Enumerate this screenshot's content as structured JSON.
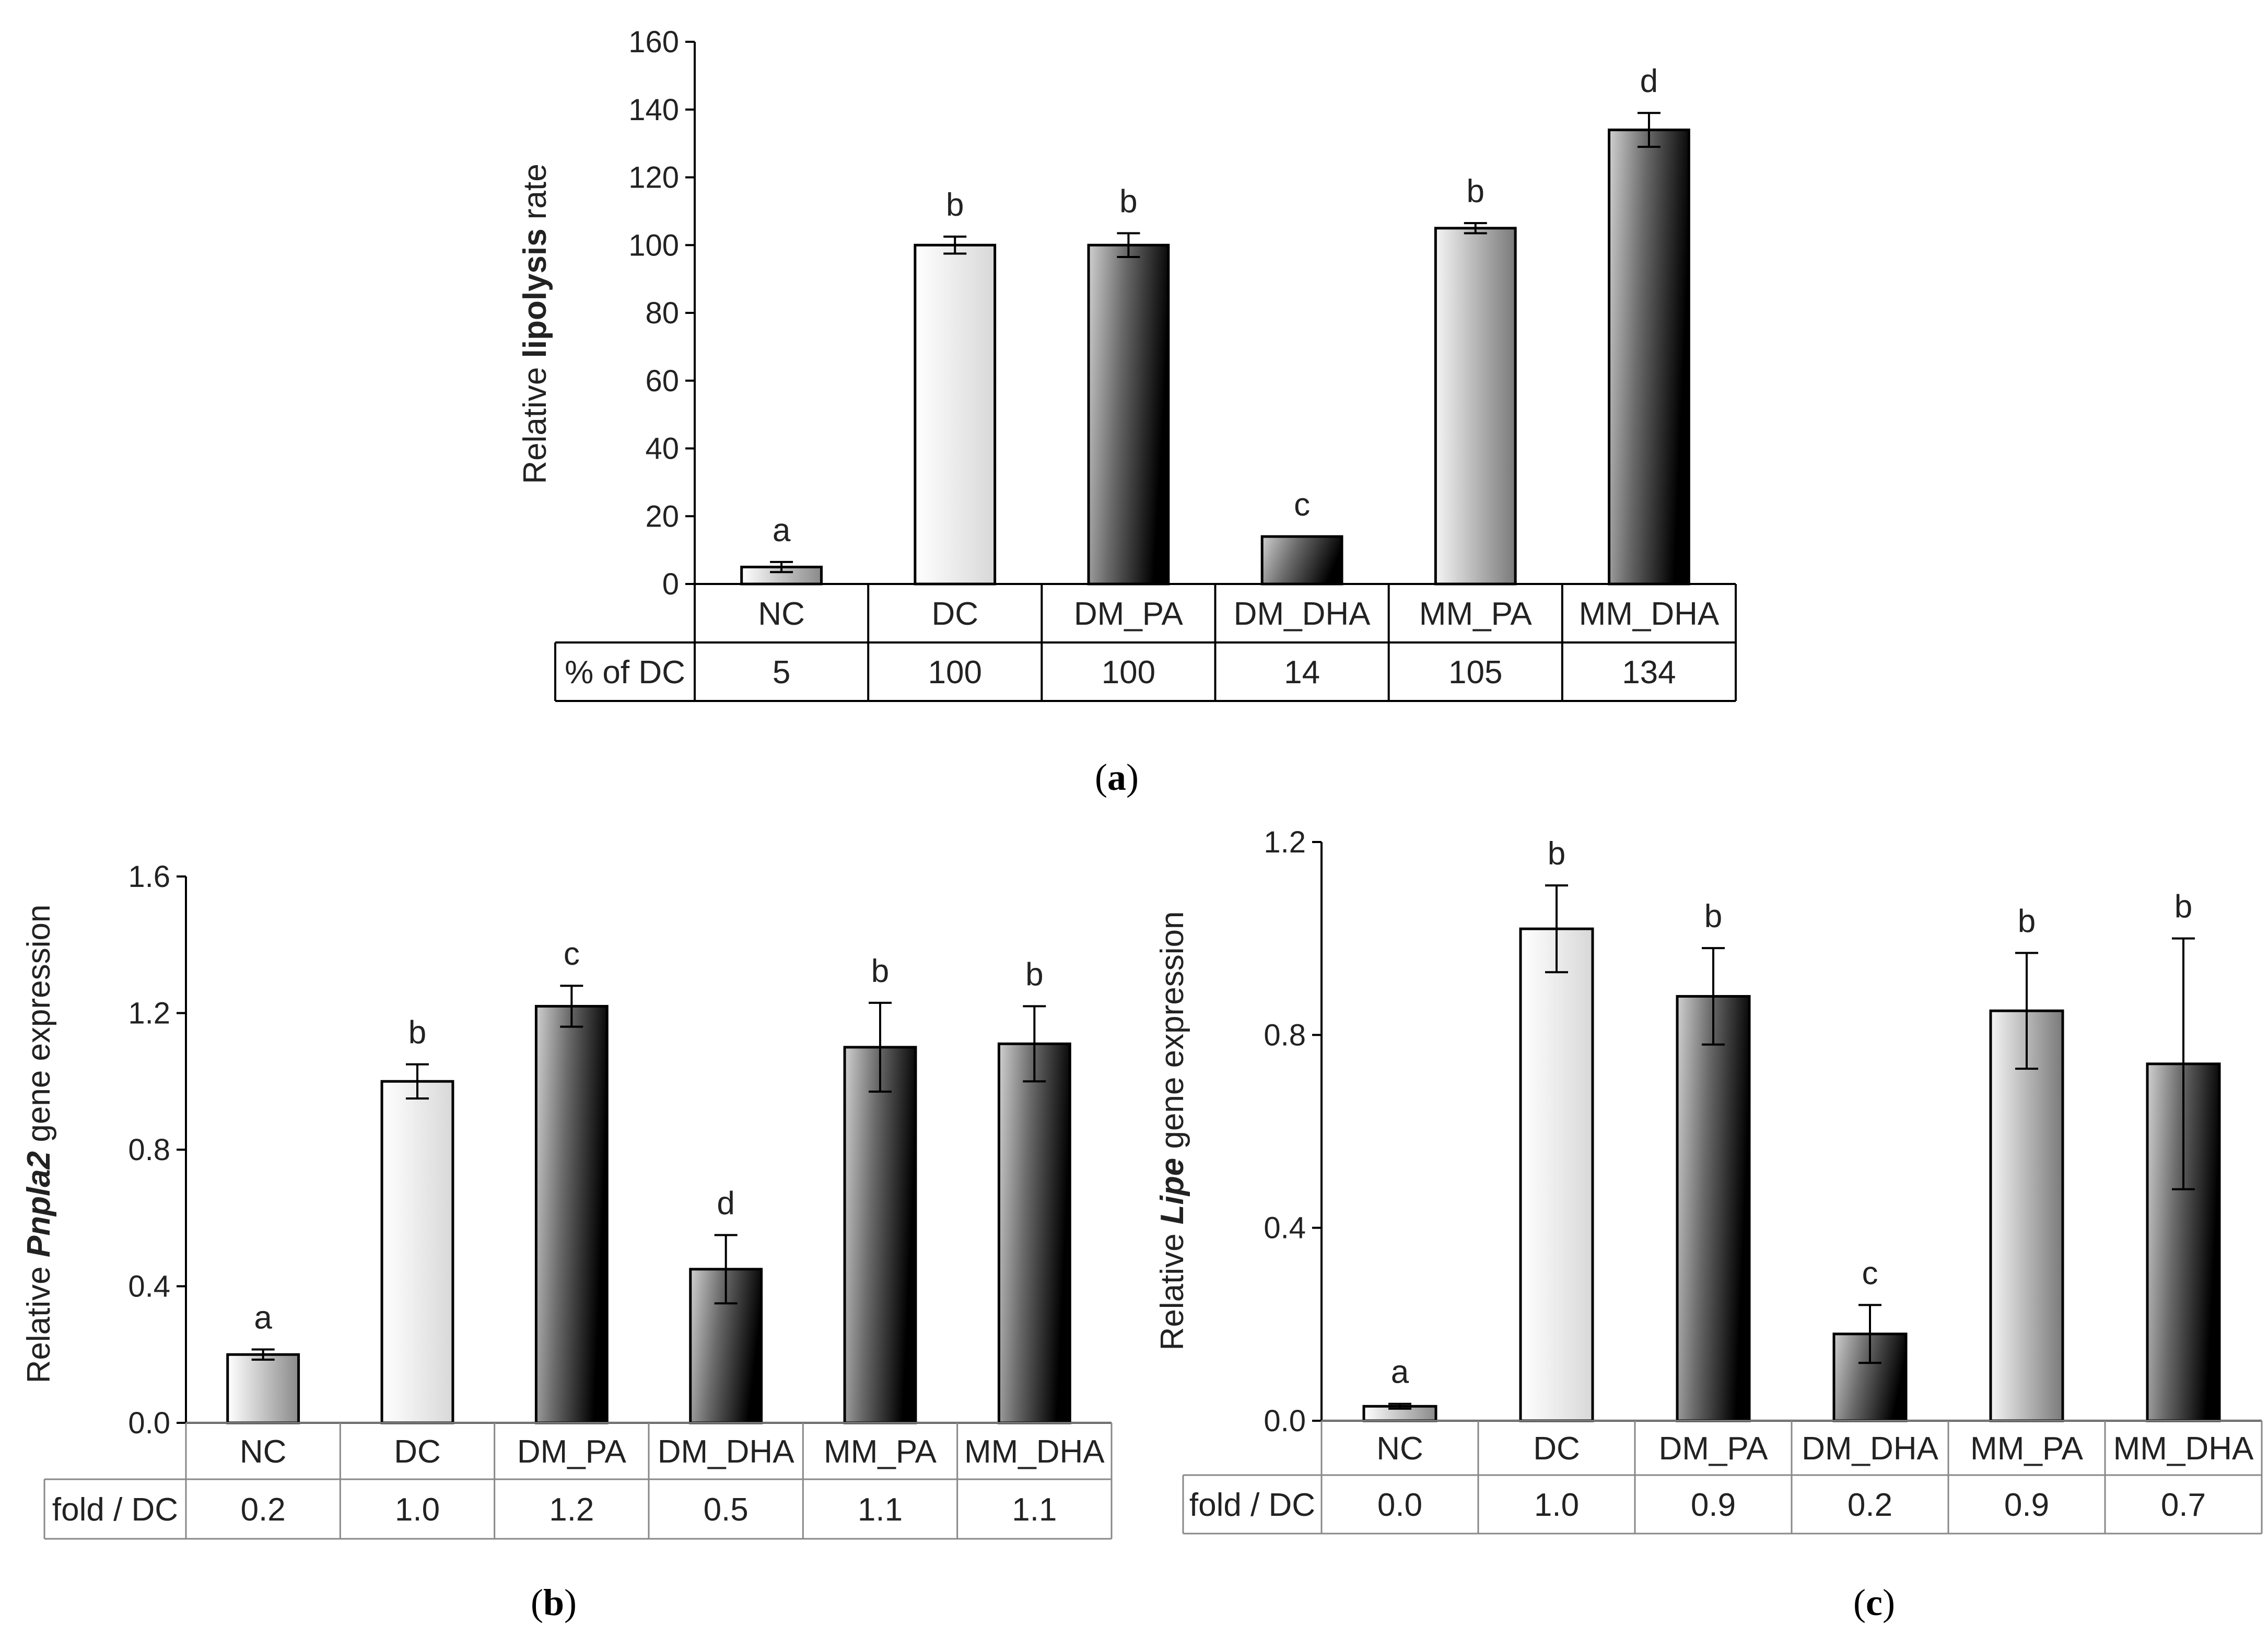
{
  "chart_data": [
    {
      "type": "bar",
      "panel_label": "a",
      "ylabel": {
        "pre": "Relative ",
        "bold": "lipolysis",
        "post": " rate",
        "italic": false
      },
      "ylim": [
        0,
        160
      ],
      "yticks": [
        "0",
        "20",
        "40",
        "60",
        "80",
        "100",
        "120",
        "140",
        "160"
      ],
      "categories": [
        "NC",
        "DC",
        "DM_PA",
        "DM_DHA",
        "MM_PA",
        "MM_DHA"
      ],
      "values": [
        5,
        100,
        100,
        14,
        105,
        134
      ],
      "errors": [
        1.5,
        2.5,
        3.5,
        0,
        1.5,
        5
      ],
      "significance": [
        "a",
        "b",
        "b",
        "c",
        "b",
        "d"
      ],
      "table_header": "% of DC",
      "table_values": [
        "5",
        "100",
        "100",
        "14",
        "105",
        "134"
      ]
    },
    {
      "type": "bar",
      "panel_label": "b",
      "ylabel": {
        "pre": "Relative ",
        "bold": "Pnpla2",
        "post": " gene  expression",
        "italic": true
      },
      "ylim": [
        0,
        1.6
      ],
      "yticks": [
        "0.0",
        "0.4",
        "0.8",
        "1.2",
        "1.6"
      ],
      "categories": [
        "NC",
        "DC",
        "DM_PA",
        "DM_DHA",
        "MM_PA",
        "MM_DHA"
      ],
      "values": [
        0.2,
        1.0,
        1.22,
        0.45,
        1.1,
        1.11
      ],
      "errors": [
        0.015,
        0.05,
        0.06,
        0.1,
        0.13,
        0.11
      ],
      "significance": [
        "a",
        "b",
        "c",
        "d",
        "b",
        "b"
      ],
      "table_header": "fold / DC",
      "table_values": [
        "0.2",
        "1.0",
        "1.2",
        "0.5",
        "1.1",
        "1.1"
      ]
    },
    {
      "type": "bar",
      "panel_label": "c",
      "ylabel": {
        "pre": "Relative ",
        "bold": "Lipe",
        "post": " gene expression",
        "italic": true
      },
      "ylim": [
        0,
        1.2
      ],
      "yticks": [
        "0.0",
        "0.4",
        "0.8",
        "1.2"
      ],
      "categories": [
        "NC",
        "DC",
        "DM_PA",
        "DM_DHA",
        "MM_PA",
        "MM_DHA"
      ],
      "values": [
        0.03,
        1.02,
        0.88,
        0.18,
        0.85,
        0.74
      ],
      "errors": [
        0.005,
        0.09,
        0.1,
        0.06,
        0.12,
        0.26
      ],
      "significance": [
        "a",
        "b",
        "b",
        "c",
        "b",
        "b"
      ],
      "table_header": "fold / DC",
      "table_values": [
        "0.0",
        "1.0",
        "0.9",
        "0.2",
        "0.9",
        "0.7"
      ]
    }
  ],
  "colors": {
    "bar_light": "#f2f2f2",
    "bar_dark": "#080808",
    "bar_mid": "#9a9a9a",
    "outline": "#000000",
    "table_line": "#888888"
  }
}
